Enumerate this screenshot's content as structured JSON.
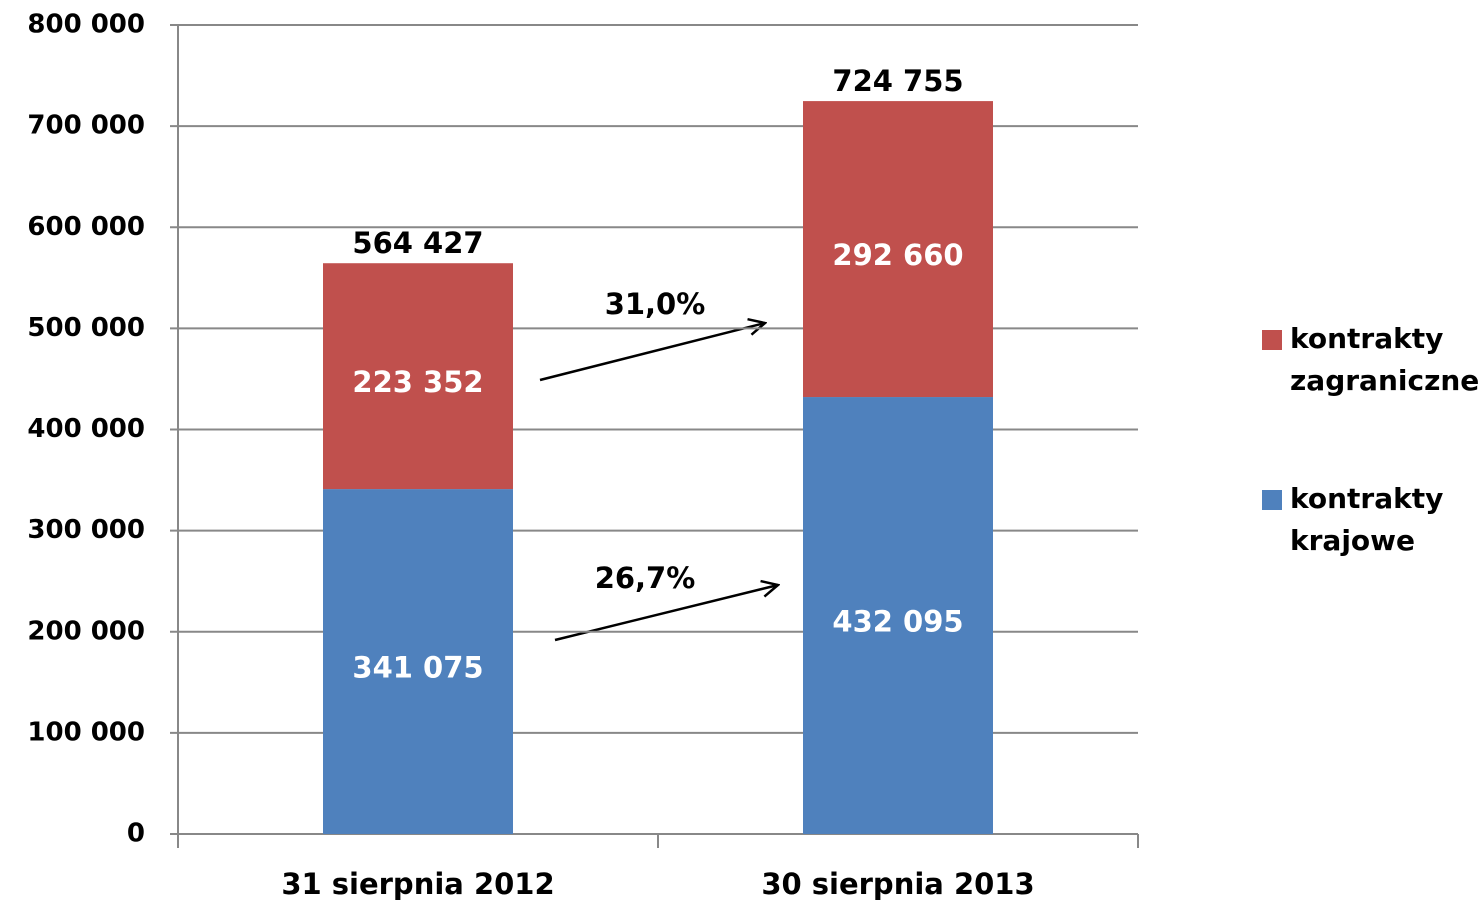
{
  "chart_data": {
    "type": "stacked-bar",
    "categories": [
      "31 sierpnia 2012",
      "30 sierpnia 2013"
    ],
    "series": [
      {
        "name": "kontrakty krajowe",
        "color": "#4f81bd",
        "values": [
          341075,
          432095
        ],
        "value_labels": [
          "341 075",
          "432 095"
        ]
      },
      {
        "name": "kontrakty zagraniczne",
        "color": "#c0504d",
        "values": [
          223352,
          292660
        ],
        "value_labels": [
          "223 352",
          "292 660"
        ]
      }
    ],
    "totals": [
      564427,
      724755
    ],
    "total_labels": [
      "564 427",
      "724 755"
    ],
    "annotations": [
      {
        "text": "31,0%"
      },
      {
        "text": "26,7%"
      }
    ],
    "ylim": [
      0,
      800000
    ],
    "yticks": [
      0,
      {
        "value": 100000,
        "label": "100 000"
      },
      {
        "value": 200000,
        "label": "200 000"
      },
      {
        "value": 300000,
        "label": "300 000"
      },
      {
        "value": 400000,
        "label": "400 000"
      },
      {
        "value": 500000,
        "label": "500 000"
      },
      {
        "value": 600000,
        "label": "600 000"
      },
      {
        "value": 700000,
        "label": "700 000"
      },
      {
        "value": 800000,
        "label": "800 000"
      }
    ],
    "grid": true,
    "legend": "right"
  }
}
